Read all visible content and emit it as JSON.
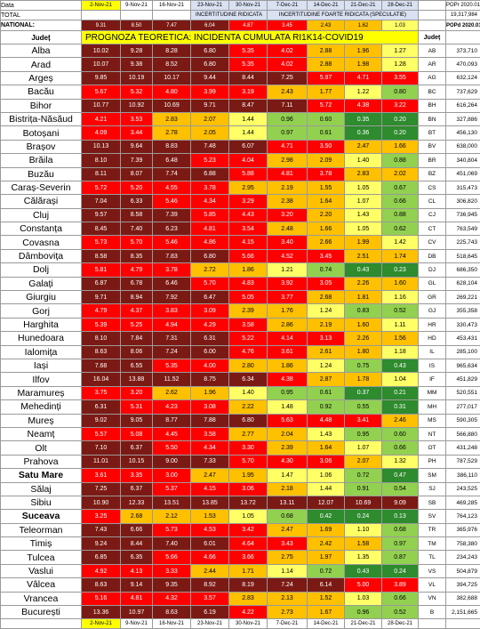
{
  "labels": {
    "data": "Data",
    "total": "TOTAL",
    "national": "NATIONAL:",
    "judet": "Județ",
    "judet2": "Județ",
    "title": "PROGNOZA TEORETICA: INCIDENTA CUMULATA RI1K14-COVID19",
    "incert": "INCERTITUDINE RIDICATA",
    "incert_f": "INCERTITUDINE FOARTE RIDICATA (SPECULATIE)",
    "popr": "POPr 2020.01",
    "popd": "POPd 2020.01",
    "total_pop": "19,317,984"
  },
  "dates": [
    "2-Nov-21",
    "9-Nov-21",
    "16-Nov-21",
    "23-Nov-21",
    "30-Nov-21",
    "7-Dec-21",
    "14-Dec-21",
    "21-Dec-21",
    "28-Dec-21"
  ],
  "national": [
    "9.31",
    "8.50",
    "7.47",
    "6.04",
    "4.87",
    "3.45",
    "2.43",
    "1.62",
    "1.03"
  ],
  "colors": {
    "maroon": "#7b1a14",
    "red": "#ff0000",
    "orange": "#ffc000",
    "yellow": "#ffff66",
    "green": "#92d050",
    "dgreen": "#2e8b2e"
  },
  "rows": [
    {
      "name": "Alba",
      "bold": false,
      "code": "AB",
      "pop": "373,710",
      "v": [
        "10.02",
        "9.28",
        "8.28",
        "6.80",
        "5.35",
        "4.02",
        "2.88",
        "1.96",
        "1.27"
      ]
    },
    {
      "name": "Arad",
      "bold": false,
      "code": "AR",
      "pop": "470,093",
      "v": [
        "10.07",
        "9.38",
        "8.52",
        "6.80",
        "5.35",
        "4.02",
        "2.88",
        "1.98",
        "1.28"
      ]
    },
    {
      "name": "Argeș",
      "bold": false,
      "code": "AG",
      "pop": "632,124",
      "v": [
        "9.85",
        "10.19",
        "10.17",
        "9.44",
        "8.44",
        "7.25",
        "5.97",
        "4.71",
        "3.55"
      ]
    },
    {
      "name": "Bacău",
      "bold": false,
      "code": "BC",
      "pop": "737,629",
      "v": [
        "5.67",
        "5.32",
        "4.80",
        "3.99",
        "3.19",
        "2.43",
        "1.77",
        "1.22",
        "0.80"
      ]
    },
    {
      "name": "Bihor",
      "bold": false,
      "code": "BH",
      "pop": "616,264",
      "v": [
        "10.77",
        "10.92",
        "10.69",
        "9.71",
        "8.47",
        "7.11",
        "5.72",
        "4.38",
        "3.22"
      ]
    },
    {
      "name": "Bistrița-Năsăud",
      "bold": false,
      "code": "BN",
      "pop": "327,886",
      "v": [
        "4.21",
        "3.53",
        "2.83",
        "2.07",
        "1.44",
        "0.96",
        "0.60",
        "0.35",
        "0.20"
      ]
    },
    {
      "name": "Botoșani",
      "bold": false,
      "code": "BT",
      "pop": "456,130",
      "v": [
        "4.09",
        "3.44",
        "2.78",
        "2.05",
        "1.44",
        "0.97",
        "0.61",
        "0.36",
        "0.20"
      ]
    },
    {
      "name": "Brașov",
      "bold": false,
      "code": "BV",
      "pop": "638,000",
      "v": [
        "10.13",
        "9.64",
        "8.83",
        "7.48",
        "6.07",
        "4.71",
        "3.50",
        "2.47",
        "1.66"
      ]
    },
    {
      "name": "Brăila",
      "bold": false,
      "code": "BR",
      "pop": "340,804",
      "v": [
        "8.10",
        "7.39",
        "6.48",
        "5.23",
        "4.04",
        "2.98",
        "2.09",
        "1.40",
        "0.88"
      ]
    },
    {
      "name": "Buzău",
      "bold": false,
      "code": "BZ",
      "pod": "",
      "pop": "451,069",
      "v": [
        "8.11",
        "8.07",
        "7.74",
        "6.88",
        "5.88",
        "4.81",
        "3.78",
        "2.83",
        "2.02"
      ]
    },
    {
      "name": "Caraș-Severin",
      "bold": false,
      "code": "CS",
      "pop": "315,473",
      "v": [
        "5.72",
        "5.20",
        "4.55",
        "3.78",
        "2.95",
        "2.19",
        "1.55",
        "1.05",
        "0.67"
      ]
    },
    {
      "name": "Călărași",
      "bold": false,
      "code": "CL",
      "pop": "306,820",
      "v": [
        "7.04",
        "6.33",
        "5.46",
        "4.34",
        "3.29",
        "2.38",
        "1.64",
        "1.07",
        "0.66"
      ]
    },
    {
      "name": "Cluj",
      "bold": false,
      "code": "CJ",
      "pop": "736,945",
      "v": [
        "9.57",
        "8.58",
        "7.39",
        "5.85",
        "4.43",
        "3.20",
        "2.20",
        "1.43",
        "0.88"
      ]
    },
    {
      "name": "Constanța",
      "bold": false,
      "code": "CT",
      "pop": "763,549",
      "v": [
        "8.45",
        "7.40",
        "6.23",
        "4.81",
        "3.54",
        "2.48",
        "1.66",
        "1.05",
        "0.62"
      ]
    },
    {
      "name": "Covasna",
      "bold": false,
      "code": "CV",
      "pop": "225,743",
      "v": [
        "5.73",
        "5.70",
        "5.46",
        "4.86",
        "4.15",
        "3.40",
        "2.66",
        "1.99",
        "1.42"
      ]
    },
    {
      "name": "Dâmbovița",
      "bold": false,
      "code": "DB",
      "pop": "518,645",
      "v": [
        "8.58",
        "8.35",
        "7.83",
        "6.80",
        "5.66",
        "4.52",
        "3.45",
        "2.51",
        "1.74"
      ]
    },
    {
      "name": "Dolj",
      "bold": false,
      "code": "DJ",
      "pop": "686,350",
      "v": [
        "5.81",
        "4.79",
        "3.78",
        "2.72",
        "1.86",
        "1.21",
        "0.74",
        "0.43",
        "0.23"
      ]
    },
    {
      "name": "Galați",
      "bold": false,
      "code": "GL",
      "pop": "628,104",
      "v": [
        "6.87",
        "6.78",
        "6.46",
        "5.70",
        "4.83",
        "3.92",
        "3.05",
        "2.26",
        "1.60"
      ]
    },
    {
      "name": "Giurgiu",
      "bold": false,
      "code": "GR",
      "pop": "269,221",
      "v": [
        "9.71",
        "8.94",
        "7.92",
        "6.47",
        "5.05",
        "3.77",
        "2.68",
        "1.81",
        "1.16"
      ]
    },
    {
      "name": "Gorj",
      "bold": false,
      "code": "GJ",
      "pop": "355,358",
      "v": [
        "4.79",
        "4.37",
        "3.83",
        "3.09",
        "2.39",
        "1.76",
        "1.24",
        "0.83",
        "0.52"
      ]
    },
    {
      "name": "Harghita",
      "bold": false,
      "code": "HR",
      "pop": "330,473",
      "v": [
        "5.39",
        "5.25",
        "4.94",
        "4.29",
        "3.58",
        "2.86",
        "2.19",
        "1.60",
        "1.11"
      ]
    },
    {
      "name": "Hunedoara",
      "bold": false,
      "code": "HD",
      "pop": "453,431",
      "v": [
        "8.10",
        "7.84",
        "7.31",
        "6.31",
        "5.22",
        "4.14",
        "3.13",
        "2.26",
        "1.56"
      ]
    },
    {
      "name": "Ialomița",
      "bold": false,
      "code": "IL",
      "pop": "285,100",
      "v": [
        "8.63",
        "8.06",
        "7.24",
        "6.00",
        "4.76",
        "3.61",
        "2.61",
        "1.80",
        "1.18"
      ]
    },
    {
      "name": "Iași",
      "bold": false,
      "code": "IS",
      "pop": "965,634",
      "v": [
        "7.68",
        "6.55",
        "5.35",
        "4.00",
        "2.80",
        "1.86",
        "1.24",
        "0.75",
        "0.43"
      ]
    },
    {
      "name": "Ilfov",
      "bold": false,
      "code": "IF",
      "pop": "451,829",
      "v": [
        "16.04",
        "13.88",
        "11.52",
        "8.75",
        "6.34",
        "4.38",
        "2.87",
        "1.78",
        "1.04"
      ]
    },
    {
      "name": "Maramureș",
      "bold": false,
      "code": "MM",
      "pop": "520,551",
      "v": [
        "3.75",
        "3.20",
        "2.62",
        "1.96",
        "1.40",
        "0.95",
        "0.61",
        "0.37",
        "0.21"
      ]
    },
    {
      "name": "Mehedinți",
      "bold": false,
      "code": "MH",
      "pop": "277,017",
      "v": [
        "6.31",
        "5.31",
        "4.23",
        "3.08",
        "2.22",
        "1.48",
        "0.92",
        "0.55",
        "0.31"
      ]
    },
    {
      "name": "Mureș",
      "bold": false,
      "code": "MS",
      "pop": "590,305",
      "v": [
        "9.02",
        "9.05",
        "8.77",
        "7.88",
        "6.80",
        "5.63",
        "4.48",
        "3.41",
        "2.46"
      ]
    },
    {
      "name": "Neamț",
      "bold": false,
      "code": "NT",
      "pop": "566,880",
      "v": [
        "5.57",
        "5.08",
        "4.45",
        "3.58",
        "2.77",
        "2.04",
        "1.43",
        "0.95",
        "0.60"
      ]
    },
    {
      "name": "Olt",
      "bold": false,
      "code": "OT",
      "pop": "431,248",
      "v": [
        "7.10",
        "6.37",
        "5.50",
        "4.34",
        "3.30",
        "2.39",
        "1.64",
        "1.07",
        "0.66"
      ]
    },
    {
      "name": "Prahova",
      "bold": false,
      "code": "PH",
      "pop": "787,529",
      "v": [
        "11.01",
        "10.15",
        "9.00",
        "7.33",
        "5.70",
        "4.30",
        "3.06",
        "2.07",
        "1.32"
      ]
    },
    {
      "name": "Satu Mare",
      "bold": true,
      "code": "SM",
      "pop": "386,110",
      "v": [
        "3.61",
        "3.35",
        "3.00",
        "2.47",
        "1.95",
        "1.47",
        "1.06",
        "0.72",
        "0.47"
      ]
    },
    {
      "name": "Sălaj",
      "bold": false,
      "code": "SJ",
      "pop": "243,525",
      "v": [
        "7.25",
        "6.37",
        "5.37",
        "4.15",
        "3.06",
        "2.18",
        "1.44",
        "0.91",
        "0.54"
      ]
    },
    {
      "name": "Sibiu",
      "bold": false,
      "code": "SB",
      "pop": "469,285",
      "v": [
        "10.90",
        "12.33",
        "13.51",
        "13.85",
        "13.72",
        "13.11",
        "12.07",
        "10.69",
        "9.09"
      ]
    },
    {
      "name": "Suceava",
      "bold": true,
      "code": "SV",
      "pop": "764,123",
      "v": [
        "3.25",
        "2.68",
        "2.12",
        "1.53",
        "1.05",
        "0.68",
        "0.42",
        "0.24",
        "0.13"
      ]
    },
    {
      "name": "Teleorman",
      "bold": false,
      "code": "TR",
      "pop": "365,976",
      "v": [
        "7.43",
        "6.66",
        "5.73",
        "4.53",
        "3.42",
        "2.47",
        "1.69",
        "1.10",
        "0.68"
      ]
    },
    {
      "name": "Timiș",
      "bold": false,
      "code": "TM",
      "pop": "758,380",
      "v": [
        "9.24",
        "8.44",
        "7.40",
        "6.01",
        "4.64",
        "3.43",
        "2.42",
        "1.58",
        "0.97"
      ]
    },
    {
      "name": "Tulcea",
      "bold": false,
      "code": "TL",
      "pop": "234,243",
      "v": [
        "6.85",
        "6.35",
        "5.66",
        "4.66",
        "3.66",
        "2.75",
        "1.97",
        "1.35",
        "0.87"
      ]
    },
    {
      "name": "Vaslui",
      "bold": false,
      "code": "VS",
      "pop": "504,879",
      "v": [
        "4.92",
        "4.13",
        "3.33",
        "2.44",
        "1.71",
        "1.14",
        "0.72",
        "0.43",
        "0.24"
      ]
    },
    {
      "name": "Vâlcea",
      "bold": false,
      "code": "VL",
      "pop": "394,725",
      "v": [
        "8.63",
        "9.14",
        "9.35",
        "8.92",
        "8.19",
        "7.24",
        "6.14",
        "5.00",
        "3.89"
      ]
    },
    {
      "name": "Vrancea",
      "bold": false,
      "code": "VN",
      "pop": "382,688",
      "v": [
        "5.16",
        "4.81",
        "4.32",
        "3.57",
        "2.83",
        "2.13",
        "1.52",
        "1.03",
        "0.66"
      ]
    },
    {
      "name": "București",
      "bold": false,
      "code": "B",
      "pop": "2,151,665",
      "v": [
        "13.36",
        "10.97",
        "8.63",
        "6.19",
        "4.22",
        "2.73",
        "1.67",
        "0.96",
        "0.52"
      ]
    }
  ]
}
